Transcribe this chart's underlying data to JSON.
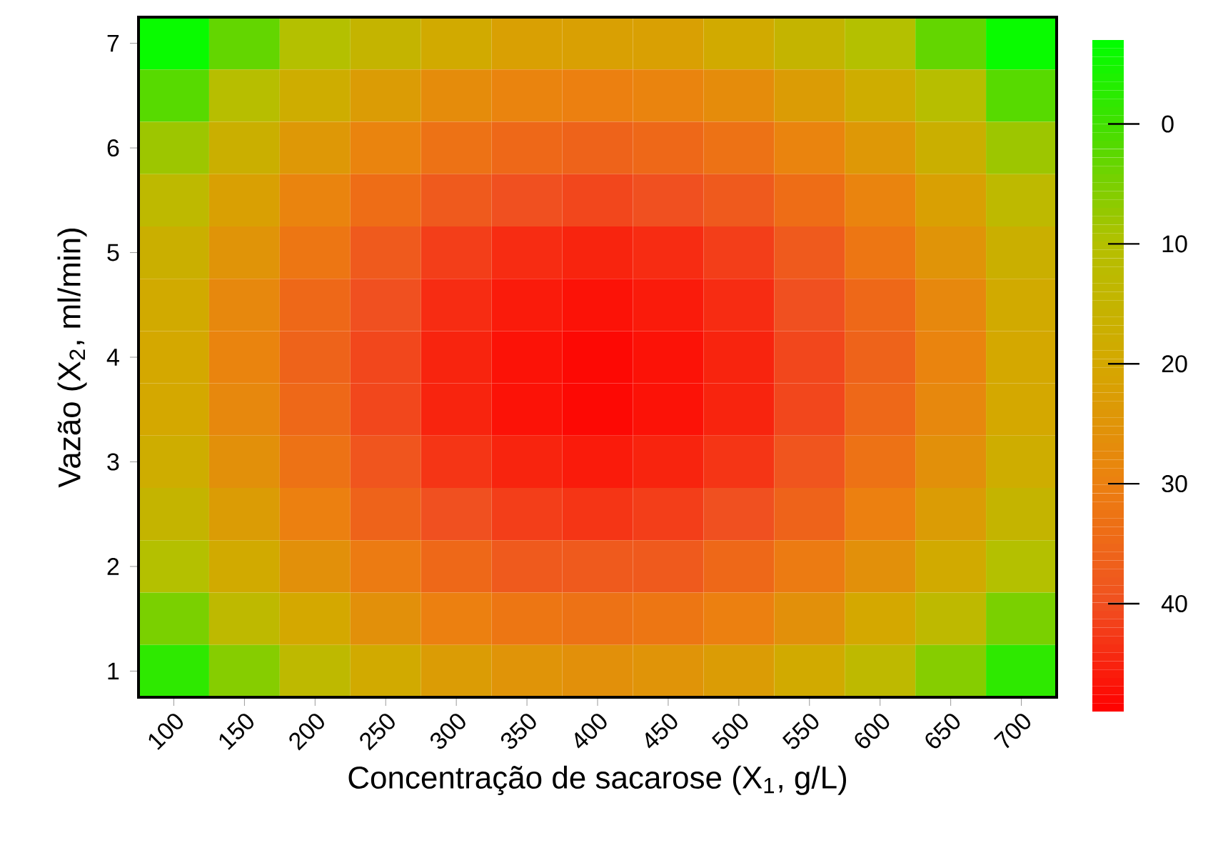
{
  "chart_data": {
    "type": "heatmap",
    "xlabel": "Concentração de sacarose (X$_{1}$, g/L)",
    "ylabel": "Vazão (X$_{2}$, ml/min)",
    "categories": [
      "100",
      "150",
      "200",
      "250",
      "300",
      "350",
      "400",
      "450",
      "500",
      "550",
      "600",
      "650",
      "700"
    ],
    "y_categories": [
      "7",
      null,
      "6",
      null,
      "5",
      null,
      "4",
      null,
      "3",
      null,
      "2",
      null,
      "1"
    ],
    "clim": [
      -7,
      49
    ],
    "cticks": [
      0,
      10,
      20,
      30,
      40
    ],
    "cells": [
      [
        -6,
        3,
        10,
        15,
        19,
        22,
        22,
        22,
        19,
        15,
        10,
        3,
        -6
      ],
      [
        2,
        11,
        18,
        23,
        27,
        29,
        30,
        29,
        27,
        23,
        18,
        11,
        2
      ],
      [
        8,
        17,
        24,
        29,
        33,
        35,
        36,
        35,
        33,
        29,
        24,
        17,
        8
      ],
      [
        13,
        22,
        29,
        34,
        38,
        40,
        41,
        40,
        38,
        34,
        29,
        22,
        13
      ],
      [
        17,
        25,
        32,
        38,
        42,
        44,
        45,
        44,
        42,
        38,
        32,
        25,
        17
      ],
      [
        19,
        28,
        35,
        40,
        44,
        46,
        47,
        46,
        44,
        40,
        35,
        28,
        19
      ],
      [
        20,
        29,
        36,
        41,
        45,
        47,
        48,
        47,
        45,
        41,
        36,
        29,
        20
      ],
      [
        20,
        28,
        35,
        41,
        45,
        47,
        48,
        47,
        45,
        41,
        35,
        28,
        20
      ],
      [
        18,
        26,
        33,
        39,
        43,
        45,
        46,
        45,
        43,
        39,
        33,
        26,
        18
      ],
      [
        15,
        23,
        30,
        36,
        40,
        42,
        43,
        42,
        40,
        36,
        30,
        23,
        15
      ],
      [
        10,
        19,
        26,
        31,
        35,
        38,
        38,
        38,
        35,
        31,
        26,
        19,
        10
      ],
      [
        5,
        13,
        20,
        26,
        30,
        32,
        33,
        32,
        30,
        26,
        20,
        13,
        5
      ],
      [
        -2,
        6,
        13,
        19,
        23,
        25,
        26,
        25,
        23,
        19,
        13,
        6,
        -2
      ]
    ]
  }
}
